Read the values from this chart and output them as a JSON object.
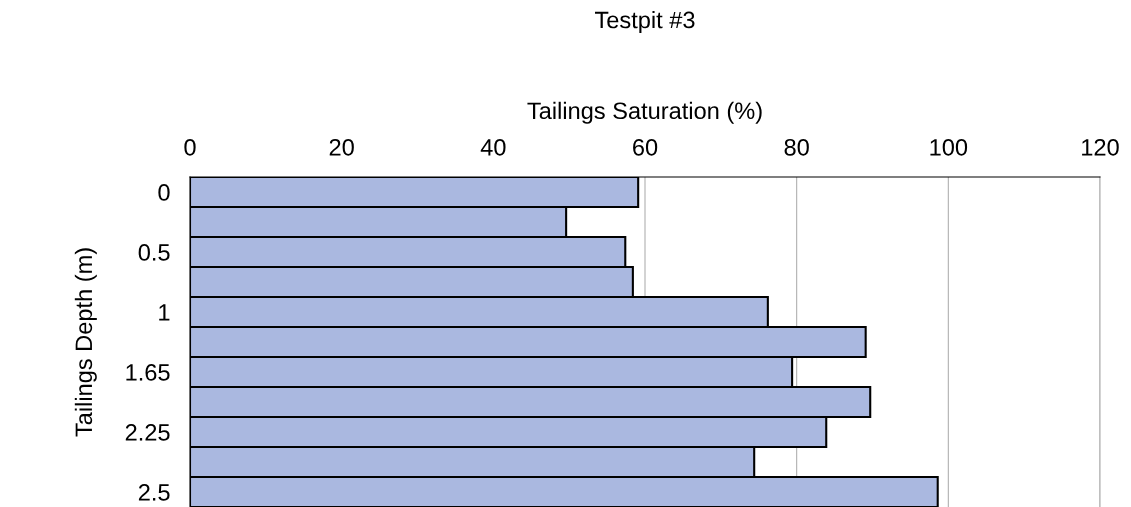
{
  "chart_data": {
    "type": "bar",
    "orientation": "horizontal",
    "title": "Testpit #3",
    "xlabel": "Tailings Saturation (%)",
    "ylabel": "Tailings Depth (m)",
    "categories": [
      "0",
      null,
      "0.5",
      null,
      "1",
      null,
      "1.65",
      null,
      "2.25",
      null,
      "2.5"
    ],
    "values": [
      59.1,
      49.6,
      57.4,
      58.4,
      76.2,
      89.1,
      79.4,
      89.7,
      83.9,
      74.4,
      98.6
    ],
    "color": "#aab8e0",
    "xlim": [
      0,
      120
    ],
    "xticks": [
      0,
      20,
      40,
      60,
      80,
      100,
      120
    ],
    "grid": "x"
  }
}
